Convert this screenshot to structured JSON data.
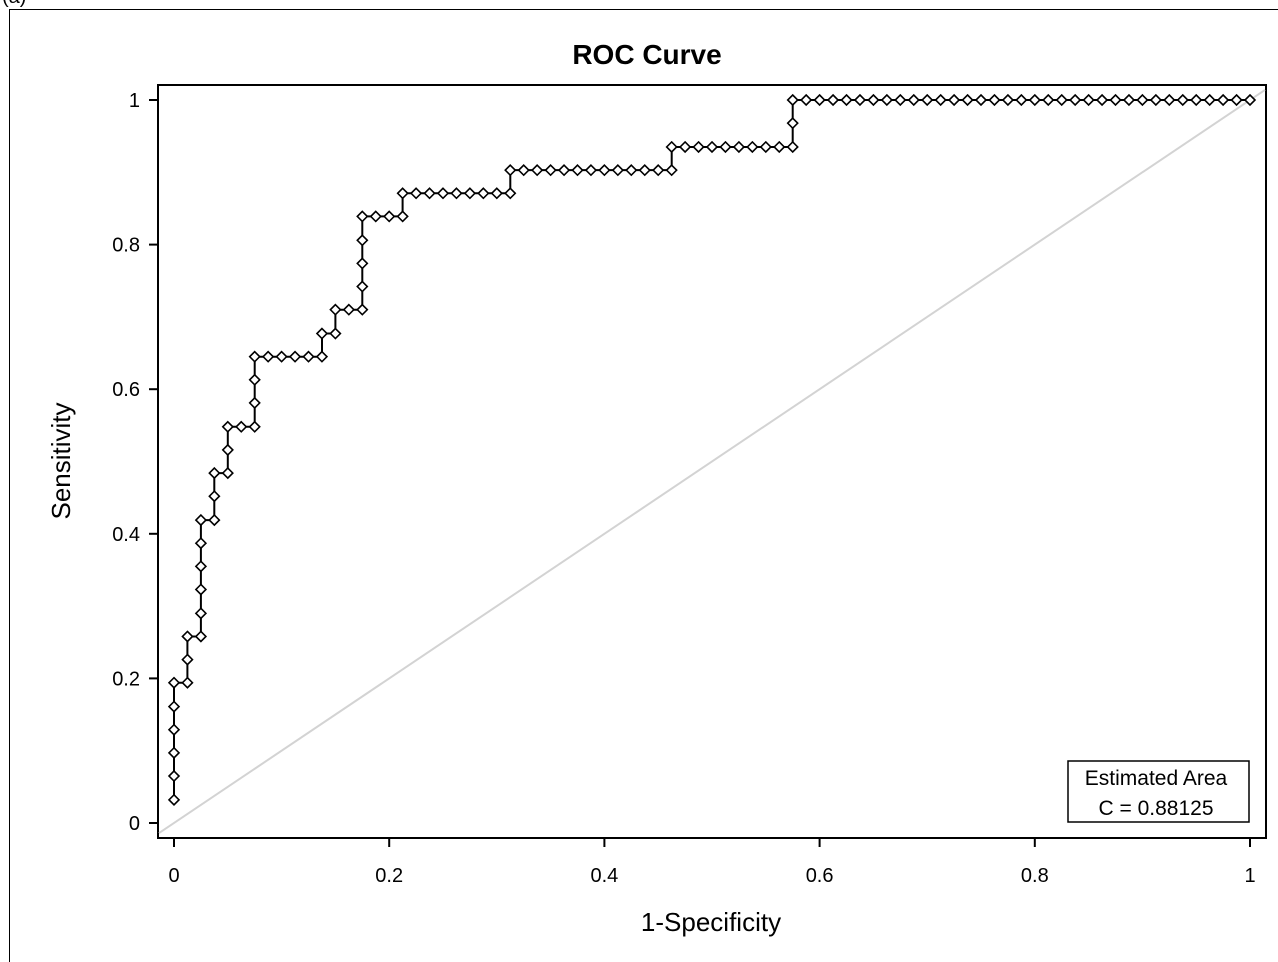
{
  "panel_label": "(a)",
  "chart_data": {
    "type": "line",
    "title": "ROC Curve",
    "xlabel": "1-Specificity",
    "ylabel": "Sensitivity",
    "xlim": [
      0,
      1
    ],
    "ylim": [
      0,
      1
    ],
    "x_ticks": [
      "0",
      "0.2",
      "0.4",
      "0.6",
      "0.8",
      "1"
    ],
    "y_ticks": [
      "0",
      "0.2",
      "0.4",
      "0.6",
      "0.8",
      "1"
    ],
    "grid": false,
    "reference_line": {
      "x": [
        0,
        1
      ],
      "y": [
        0,
        1
      ],
      "color": "#d3d3d3"
    },
    "series": [
      {
        "marker": "diamond",
        "color": "#000000",
        "x": [
          0,
          0,
          0,
          0,
          0,
          0,
          0.0125,
          0.0125,
          0.0125,
          0.025,
          0.025,
          0.025,
          0.025,
          0.025,
          0.025,
          0.0375,
          0.0375,
          0.0375,
          0.05,
          0.05,
          0.05,
          0.0625,
          0.075,
          0.075,
          0.075,
          0.075,
          0.0875,
          0.1,
          0.1125,
          0.125,
          0.1375,
          0.1375,
          0.15,
          0.15,
          0.1625,
          0.175,
          0.175,
          0.175,
          0.175,
          0.175,
          0.1875,
          0.2,
          0.2125,
          0.2125,
          0.225,
          0.2375,
          0.25,
          0.2625,
          0.275,
          0.2875,
          0.3,
          0.3125,
          0.3125,
          0.325,
          0.3375,
          0.35,
          0.3625,
          0.375,
          0.3875,
          0.4,
          0.4125,
          0.425,
          0.4375,
          0.45,
          0.4625,
          0.4625,
          0.475,
          0.4875,
          0.5,
          0.5125,
          0.525,
          0.5375,
          0.55,
          0.5625,
          0.575,
          0.575,
          0.575,
          0.5875,
          0.6,
          0.6125,
          0.625,
          0.6375,
          0.65,
          0.6625,
          0.675,
          0.6875,
          0.7,
          0.7125,
          0.725,
          0.7375,
          0.75,
          0.7625,
          0.775,
          0.7875,
          0.8,
          0.8125,
          0.825,
          0.8375,
          0.85,
          0.8625,
          0.875,
          0.8875,
          0.9,
          0.9125,
          0.925,
          0.9375,
          0.95,
          0.9625,
          0.975,
          0.9875,
          1
        ],
        "y": [
          0.032,
          0.065,
          0.097,
          0.129,
          0.161,
          0.194,
          0.194,
          0.226,
          0.258,
          0.258,
          0.29,
          0.323,
          0.355,
          0.387,
          0.419,
          0.419,
          0.452,
          0.484,
          0.484,
          0.516,
          0.548,
          0.548,
          0.548,
          0.581,
          0.613,
          0.645,
          0.645,
          0.645,
          0.645,
          0.645,
          0.645,
          0.677,
          0.677,
          0.71,
          0.71,
          0.71,
          0.742,
          0.774,
          0.806,
          0.839,
          0.839,
          0.839,
          0.839,
          0.871,
          0.871,
          0.871,
          0.871,
          0.871,
          0.871,
          0.871,
          0.871,
          0.871,
          0.903,
          0.903,
          0.903,
          0.903,
          0.903,
          0.903,
          0.903,
          0.903,
          0.903,
          0.903,
          0.903,
          0.903,
          0.903,
          0.935,
          0.935,
          0.935,
          0.935,
          0.935,
          0.935,
          0.935,
          0.935,
          0.935,
          0.935,
          0.968,
          1,
          1,
          1,
          1,
          1,
          1,
          1,
          1,
          1,
          1,
          1,
          1,
          1,
          1,
          1,
          1,
          1,
          1,
          1,
          1,
          1,
          1,
          1,
          1,
          1,
          1,
          1,
          1,
          1,
          1,
          1,
          1,
          1,
          1,
          1
        ]
      }
    ],
    "inset": {
      "title": "Estimated Area",
      "text": "C =  0.88125",
      "placement": "bottom-right"
    }
  }
}
